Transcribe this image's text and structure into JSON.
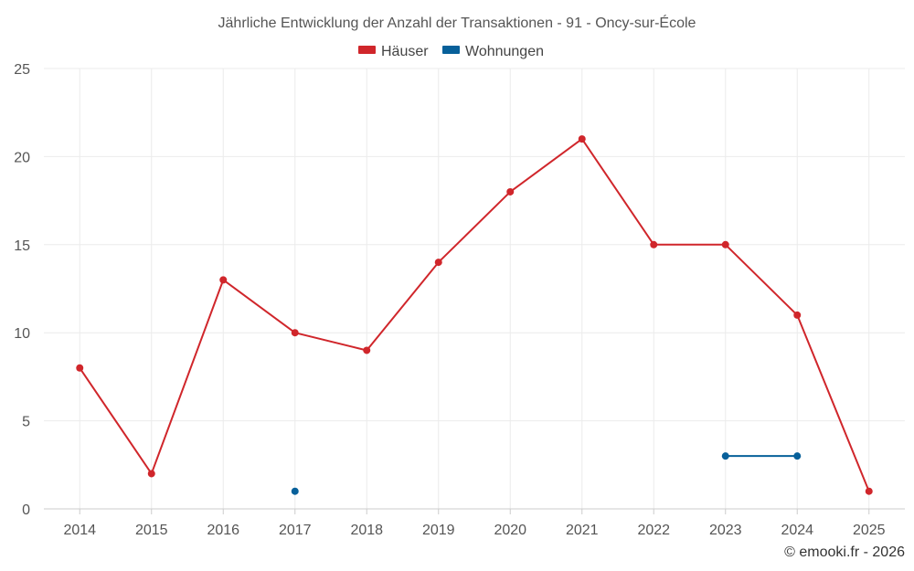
{
  "chart_data": {
    "type": "line",
    "title": "Jährliche Entwicklung der Anzahl der Transaktionen - 91 - Oncy-sur-École",
    "categories": [
      "2014",
      "2015",
      "2016",
      "2017",
      "2018",
      "2019",
      "2020",
      "2021",
      "2022",
      "2023",
      "2024",
      "2025"
    ],
    "series": [
      {
        "name": "Häuser",
        "color": "#d0262b",
        "values": [
          8,
          2,
          13,
          10,
          9,
          14,
          18,
          21,
          15,
          15,
          11,
          1
        ]
      },
      {
        "name": "Wohnungen",
        "color": "#07609a",
        "values": [
          null,
          null,
          null,
          1,
          null,
          null,
          null,
          null,
          null,
          3,
          3,
          null
        ]
      }
    ],
    "ylim": [
      0,
      25
    ],
    "yticks": [
      0,
      5,
      10,
      15,
      20,
      25
    ],
    "grid": true,
    "legend_position": "top-center",
    "xlabel": "",
    "ylabel": ""
  },
  "credit": "© emooki.fr - 2026"
}
